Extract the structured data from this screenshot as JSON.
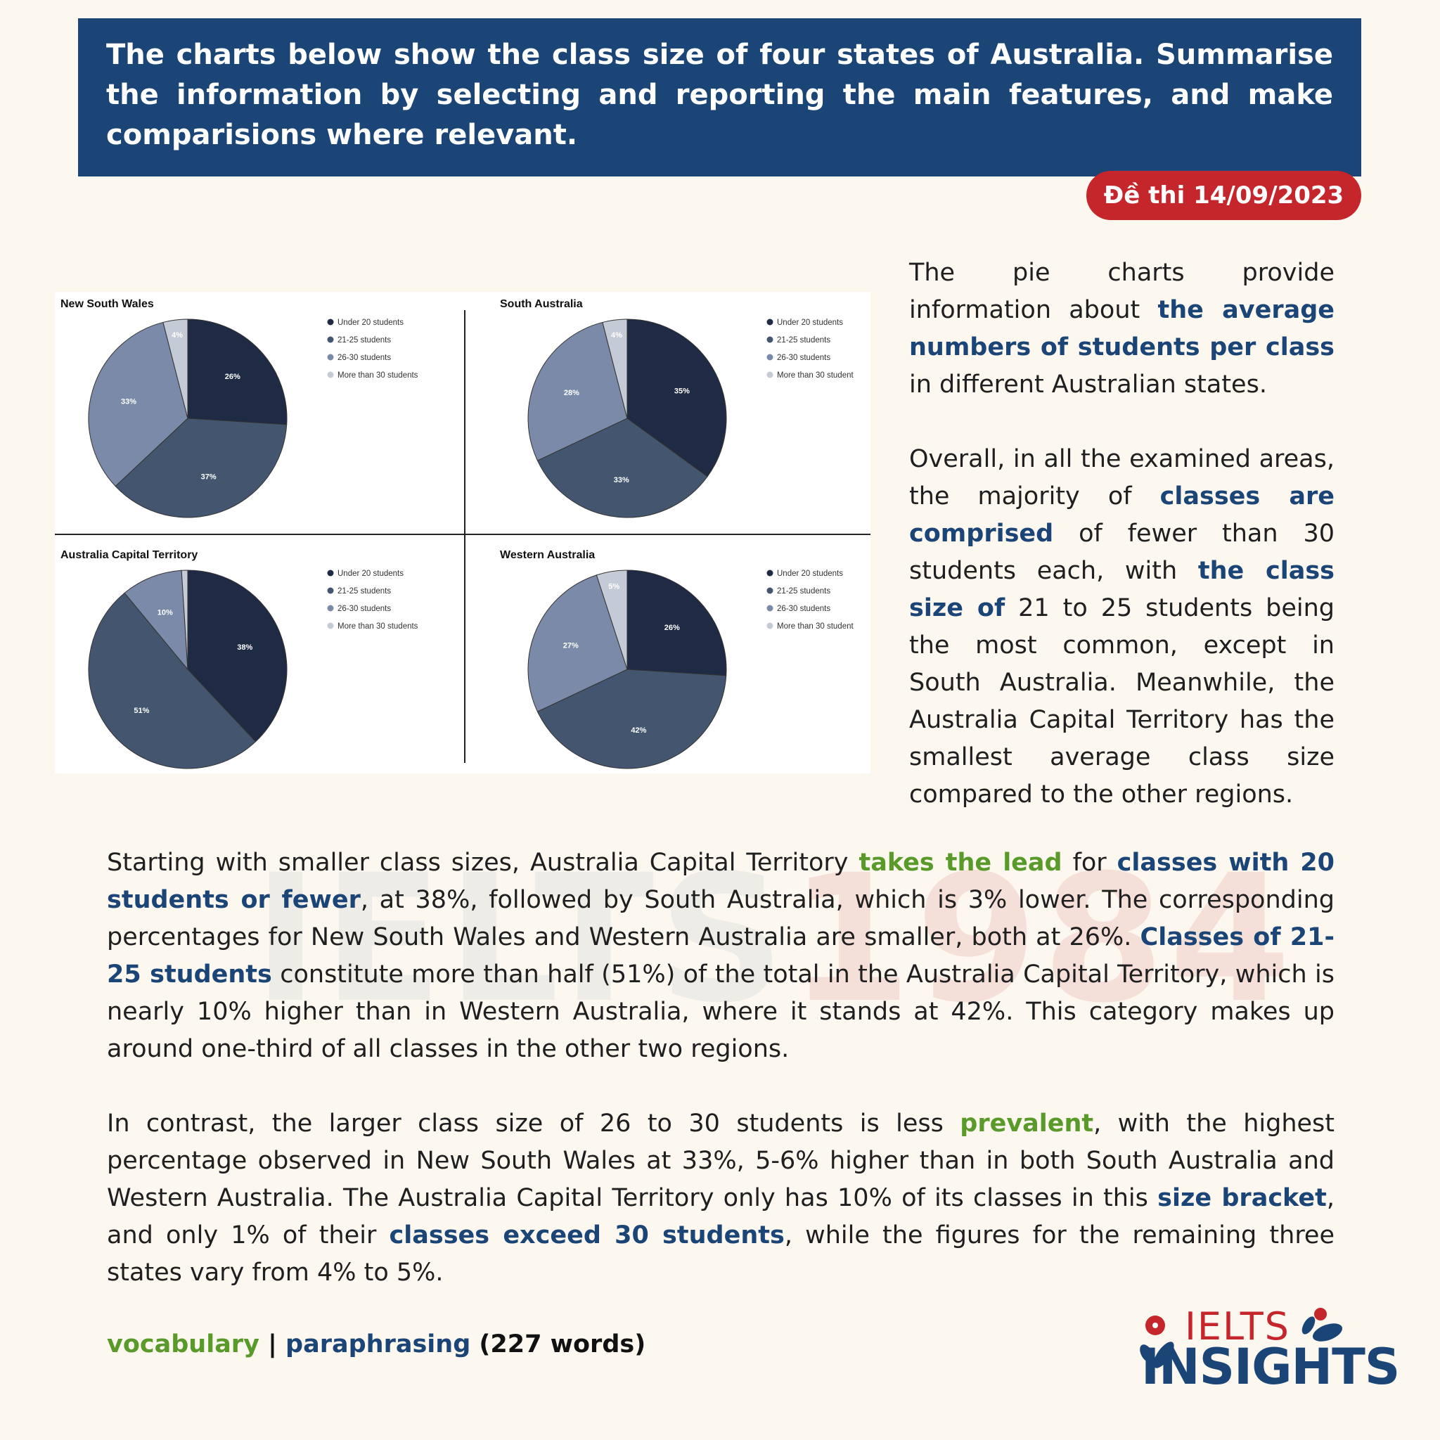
{
  "header": {
    "prompt": "The charts below show the class size of four states of Australia. Summarise the information by selecting and reporting the main features, and make comparisions where relevant."
  },
  "badge": {
    "label": "Đề thi 14/09/2023"
  },
  "colors": {
    "header": "#1b4577",
    "badge": "#c4262b",
    "highlight_blue": "#1b4577",
    "highlight_green": "#5a9a2a",
    "pie": [
      "#1f2a44",
      "#44566f",
      "#7b8aa8",
      "#c4cad6"
    ]
  },
  "chart_data": [
    {
      "type": "pie",
      "title": "New South Wales",
      "categories": [
        "Under 20 students",
        "21-25 students",
        "26-30 students",
        "More than 30 students"
      ],
      "values": [
        26,
        37,
        33,
        4
      ],
      "labels": [
        "26%",
        "37%",
        "33%",
        "4%"
      ],
      "legend": "right"
    },
    {
      "type": "pie",
      "title": "South Australia",
      "categories": [
        "Under 20 students",
        "21-25 students",
        "26-30 students",
        "More than 30 student"
      ],
      "values": [
        35,
        33,
        28,
        4
      ],
      "labels": [
        "35%",
        "33%",
        "28%",
        "4%"
      ],
      "legend": "right"
    },
    {
      "type": "pie",
      "title": "Australia Capital Territory",
      "categories": [
        "Under 20 students",
        "21-25 students",
        "26-30 students",
        "More than 30 students"
      ],
      "values": [
        38,
        51,
        10,
        1
      ],
      "labels": [
        "38%",
        "51%",
        "10%",
        ""
      ],
      "legend": "right"
    },
    {
      "type": "pie",
      "title": "Western Australia",
      "categories": [
        "Under 20 students",
        "21-25 students",
        "26-30 students",
        "More than 30 student"
      ],
      "values": [
        26,
        42,
        27,
        5
      ],
      "labels": [
        "26%",
        "42%",
        "27%",
        "5%"
      ],
      "legend": "right"
    }
  ],
  "paragraphs": [
    [
      {
        "t": "The pie charts provide information about "
      },
      {
        "t": "the average numbers of students per class",
        "s": "blue"
      },
      {
        "t": " in different Australian states."
      }
    ],
    [
      {
        "t": "Overall, in all the examined areas, the majority of "
      },
      {
        "t": "classes are comprised",
        "s": "blue"
      },
      {
        "t": " of fewer than 30 students each, with "
      },
      {
        "t": "the class size of",
        "s": "blue"
      },
      {
        "t": " 21 to 25 students being the most common, except in South Australia. Meanwhile, the Australia Capital Territory has the smallest average class size compared to the other regions."
      }
    ],
    [
      {
        "t": "Starting with smaller class sizes, Australia Capital Territory "
      },
      {
        "t": "takes the lead",
        "s": "green"
      },
      {
        "t": " for "
      },
      {
        "t": "classes with 20 students or fewer",
        "s": "blue"
      },
      {
        "t": ", at 38%, followed by South Australia, which is 3% lower. The corresponding percentages for New South Wales and Western Australia are smaller, both at 26%. "
      },
      {
        "t": "Classes of 21-25 students",
        "s": "blue"
      },
      {
        "t": " constitute more than half (51%) of the total in the Australia Capital Territory, which is nearly 10% higher than in Western Australia, where it stands at 42%. This category makes up around one-third of all classes in the other two regions."
      }
    ],
    [
      {
        "t": "In contrast, the larger class size of 26 to 30 students is less "
      },
      {
        "t": "prevalent",
        "s": "green"
      },
      {
        "t": ", with the highest percentage observed in New South Wales at 33%, 5-6% higher than in both South Australia and Western Australia. The Australia Capital Territory only has 10% of its classes in this "
      },
      {
        "t": "size bracket",
        "s": "blue"
      },
      {
        "t": ", and only 1% of their "
      },
      {
        "t": "classes exceed 30 students",
        "s": "blue"
      },
      {
        "t": ", while the figures for the remaining three states vary from 4% to 5%."
      }
    ]
  ],
  "footer": {
    "vocabulary": "vocabulary",
    "separator": " | ",
    "paraphrasing": "paraphrasing",
    "count": " (227 words)"
  },
  "watermark": {
    "text": "IELTS",
    "num": "1984"
  },
  "logo": {
    "top": "IELTS",
    "bottom": "INSIGHTS"
  }
}
